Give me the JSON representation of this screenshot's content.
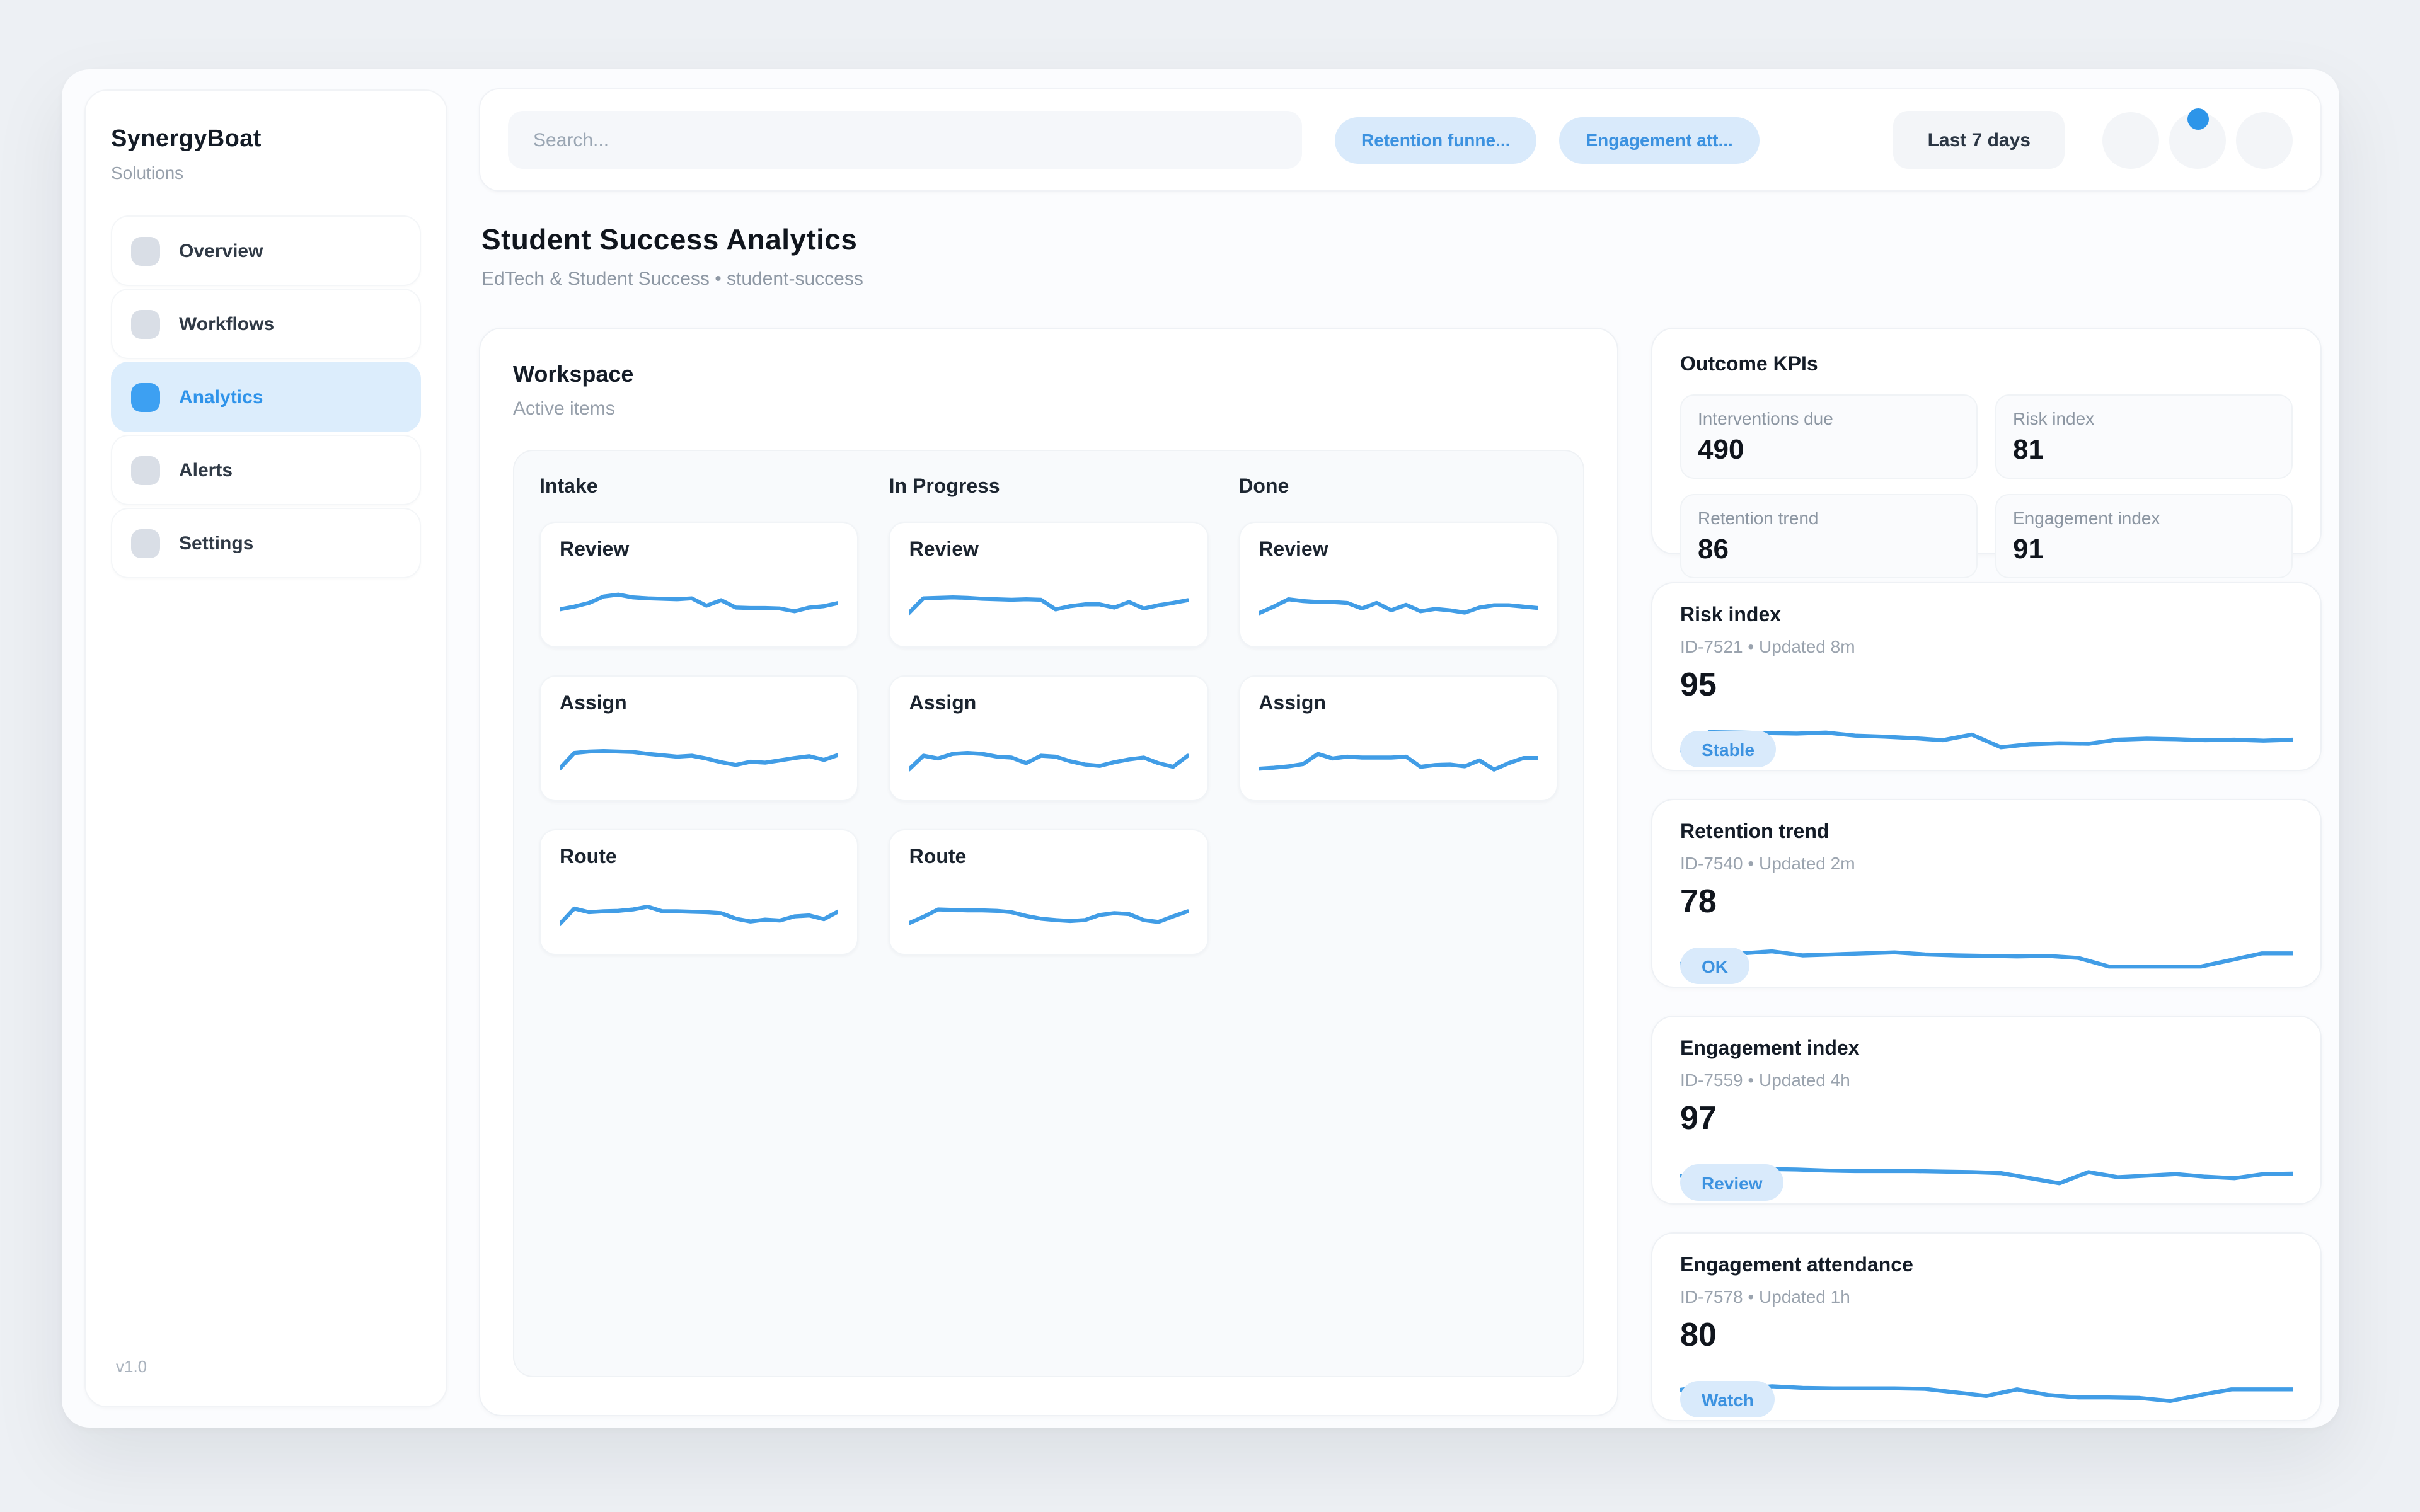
{
  "colors": {
    "accent": "#419de6",
    "accent_text": "#2e93ea",
    "chip_bg": "#d9eafb",
    "page_bg": "#edf0f4",
    "card_bg": "#ffffff"
  },
  "sidebar": {
    "brand": "SynergyBoat",
    "brand_sub": "Solutions",
    "version": "v1.0",
    "items": [
      {
        "label": "Overview",
        "active": false
      },
      {
        "label": "Workflows",
        "active": false
      },
      {
        "label": "Analytics",
        "active": true
      },
      {
        "label": "Alerts",
        "active": false
      },
      {
        "label": "Settings",
        "active": false
      }
    ]
  },
  "topbar": {
    "search_placeholder": "Search...",
    "chips": [
      {
        "label": "Retention funne..."
      },
      {
        "label": "Engagement att..."
      }
    ],
    "range_button": "Last 7 days"
  },
  "page": {
    "title": "Student Success Analytics",
    "subtitle": "EdTech & Student Success • student-success"
  },
  "workspace": {
    "title": "Workspace",
    "subtitle": "Active items",
    "columns": [
      {
        "title": "Intake",
        "cards": [
          {
            "label": "Review",
            "spark": [
              30,
              36,
              44,
              58,
              62,
              56,
              54,
              53,
              52,
              54,
              38,
              50,
              34,
              33,
              33,
              32,
              26,
              34,
              37,
              44
            ]
          },
          {
            "label": "Assign",
            "spark": [
              18,
              52,
              55,
              56,
              55,
              54,
              50,
              47,
              44,
              46,
              40,
              32,
              26,
              33,
              31,
              36,
              41,
              45,
              37,
              48
            ]
          },
          {
            "label": "Route",
            "spark": [
              14,
              48,
              40,
              42,
              43,
              46,
              52,
              42,
              42,
              41,
              40,
              38,
              26,
              20,
              24,
              22,
              31,
              33,
              25,
              42
            ]
          }
        ]
      },
      {
        "title": "In Progress",
        "cards": [
          {
            "label": "Review",
            "spark": [
              22,
              54,
              55,
              56,
              55,
              53,
              52,
              51,
              52,
              51,
              30,
              37,
              41,
              41,
              34,
              46,
              32,
              39,
              44,
              50
            ]
          },
          {
            "label": "Assign",
            "spark": [
              16,
              46,
              40,
              50,
              52,
              50,
              44,
              42,
              30,
              46,
              44,
              34,
              27,
              24,
              32,
              38,
              42,
              30,
              22,
              46
            ]
          },
          {
            "label": "Route",
            "spark": [
              16,
              30,
              46,
              45,
              44,
              44,
              43,
              40,
              32,
              26,
              23,
              21,
              23,
              34,
              38,
              36,
              23,
              19,
              31,
              42
            ]
          }
        ]
      },
      {
        "title": "Done",
        "cards": [
          {
            "label": "Review",
            "spark": [
              22,
              36,
              52,
              48,
              46,
              46,
              44,
              32,
              44,
              28,
              40,
              26,
              31,
              28,
              23,
              34,
              39,
              39,
              36,
              33
            ]
          },
          {
            "label": "Assign",
            "spark": [
              18,
              20,
              23,
              28,
              50,
              40,
              44,
              42,
              42,
              42,
              44,
              22,
              26,
              27,
              23,
              36,
              16,
              30,
              41,
              41
            ]
          }
        ]
      }
    ]
  },
  "kpis": {
    "title": "Outcome KPIs",
    "tiles": [
      {
        "label": "Interventions due",
        "value": "490"
      },
      {
        "label": "Risk index",
        "value": "81"
      },
      {
        "label": "Retention trend",
        "value": "86"
      },
      {
        "label": "Engagement index",
        "value": "91"
      }
    ]
  },
  "metrics": [
    {
      "title": "Risk index",
      "meta": "ID-7521 • Updated 8m",
      "value": "95",
      "badge": "Stable",
      "spark": [
        20,
        56,
        55,
        54,
        53,
        55,
        49,
        47,
        44,
        40,
        51,
        26,
        32,
        34,
        33,
        41,
        43,
        42,
        40,
        41,
        39,
        41
      ]
    },
    {
      "title": "Retention trend",
      "meta": "ID-7540 • Updated 2m",
      "value": "78",
      "badge": "OK",
      "spark": [
        26,
        40,
        47,
        51,
        43,
        45,
        47,
        49,
        45,
        43,
        42,
        41,
        42,
        38,
        21,
        21,
        21,
        21,
        34,
        47,
        47
      ]
    },
    {
      "title": "Engagement index",
      "meta": "ID-7559 • Updated 4h",
      "value": "97",
      "badge": "Review",
      "spark": [
        36,
        34,
        29,
        49,
        48,
        46,
        45,
        45,
        45,
        44,
        43,
        41,
        31,
        21,
        43,
        33,
        36,
        39,
        34,
        31,
        39,
        40
      ]
    },
    {
      "title": "Engagement attendance",
      "meta": "ID-7578 • Updated 1h",
      "value": "80",
      "badge": "Watch",
      "spark": [
        41,
        50,
        43,
        48,
        45,
        44,
        44,
        44,
        43,
        36,
        29,
        42,
        31,
        26,
        26,
        25,
        19,
        31,
        42,
        42,
        42
      ]
    }
  ]
}
